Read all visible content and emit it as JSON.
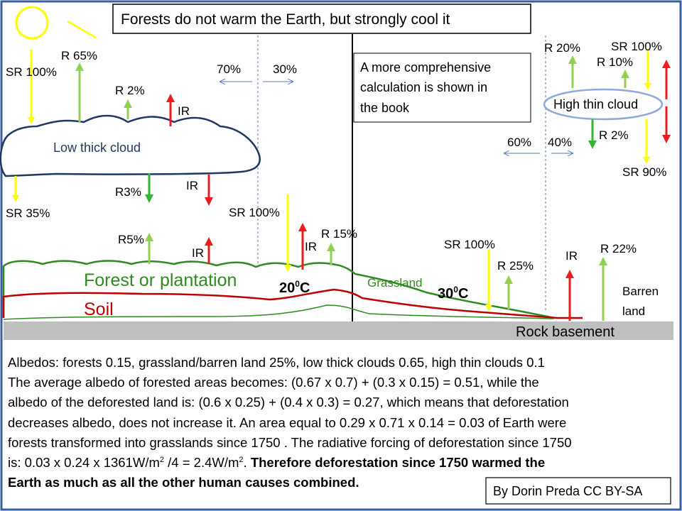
{
  "title": "Forests do not warm the Earth, but strongly cool it",
  "note": {
    "line1": "A more comprehensive",
    "line2": "calculation is shown in",
    "line3": "the book"
  },
  "labels": {
    "sr100_left": "SR 100%",
    "r65": "R 65%",
    "r2_left": "R 2%",
    "ir_cloud_top": "IR",
    "pct70": "70%",
    "pct30": "30%",
    "low_cloud": "Low thick cloud",
    "r3": "R3%",
    "ir_under_cloud": "IR",
    "sr35": "SR 35%",
    "r5": "R5%",
    "ir_forest": "IR",
    "sr100_mid": "SR 100%",
    "ir_mid": "IR",
    "r15": "R 15%",
    "forest": "Forest or plantation",
    "temp_forest_base": "20",
    "temp_forest_sup": "0",
    "temp_forest_unit": "C",
    "soil": "Soil",
    "grassland": "Grassland",
    "temp_grass_base": "30",
    "temp_grass_sup": "0",
    "temp_grass_unit": "C",
    "sr100_grass": "SR 100%",
    "r25": "R 25%",
    "ir_barren": "IR",
    "r22": "R 22%",
    "barren1": "Barren",
    "barren2": "land",
    "rock": "Rock basement",
    "r20": "R 20%",
    "r10": "R 10%",
    "sr100_right": "SR 100%",
    "high_cloud": "High thin cloud",
    "r2_right": "R 2%",
    "pct60": "60%",
    "pct40": "40%",
    "sr90": "SR 90%"
  },
  "bottom": {
    "line1": "Albedos: forests 0.15, grassland/barren land 25%, low thick clouds 0.65, high thin clouds 0.1",
    "line2": "The average albedo of forested areas becomes: (0.67 x 0.7) + (0.3 x 0.15) = 0.51, while the",
    "line3": "albedo of the deforested land is: (0.6 x 0.25) + (0.4 x 0.3) = 0.27, which means that deforestation",
    "line4": "decreases albedo, does not increase it. An area equal to 0.29 x 0.71 x 0.14 = 0.03 of Earth were",
    "line5": "forests transformed into grasslands since 1750 . The radiative forcing of deforestation since 1750",
    "line6a": "is:  0.03 x 0.24 x 1361W/m",
    "line6sup1": "2",
    "line6b": " /4 = 2.4W/m",
    "line6sup2": "2",
    "line6c": ". ",
    "line6bold": "Therefore deforestation since 1750 warmed the",
    "line7bold": "Earth as much as all the other human causes combined."
  },
  "credit": "By Dorin Preda CC BY-SA",
  "colors": {
    "frame": "#3b5fa0",
    "sun": "#ffff00",
    "sr_arrow": "#ffff00",
    "r_arrow": "#92d050",
    "r_arrow_dark": "#33b533",
    "ir_arrow": "#ee1c1c",
    "cloud_low": "#1f3864",
    "cloud_high": "#8eaadb",
    "forest": "#2e8b1f",
    "soil": "#c00000",
    "rock": "#bfbfbf"
  }
}
